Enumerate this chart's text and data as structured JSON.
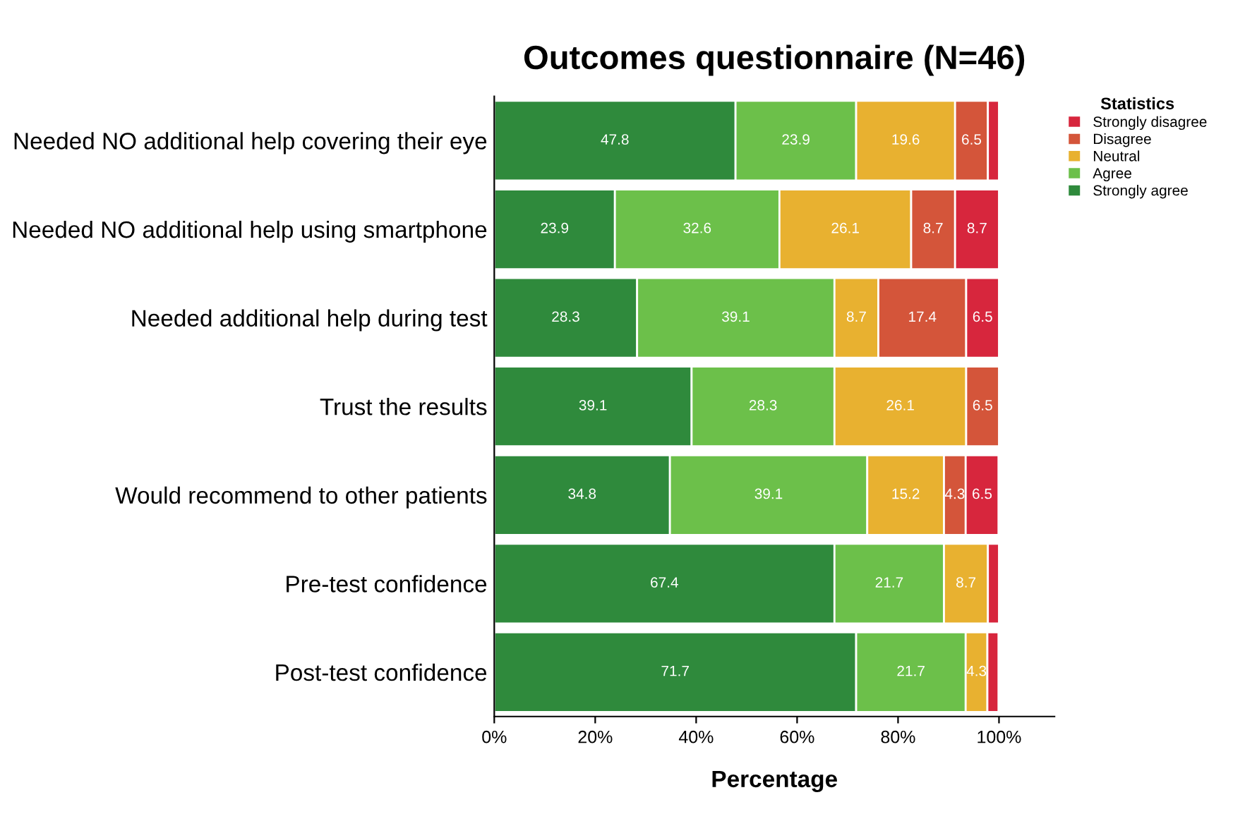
{
  "chart_data": {
    "type": "bar",
    "orientation": "horizontal",
    "stacked": true,
    "title": "Outcomes questionnaire (N=46)",
    "xlabel": "Percentage",
    "legend_title": "Statistics",
    "legend": "top right",
    "categories": [
      "Needed NO additional help covering their eye",
      "Needed NO additional help using smartphone",
      "Needed additional help during test",
      "Trust the results",
      "Would recommend to other patients",
      "Pre-test confidence",
      "Post-test confidence"
    ],
    "xlim": [
      0,
      111
    ],
    "xticks": [
      {
        "value": 0,
        "label": "0%"
      },
      {
        "value": 20,
        "label": "20%"
      },
      {
        "value": 40,
        "label": "40%"
      },
      {
        "value": 60,
        "label": "60%"
      },
      {
        "value": 80,
        "label": "80%"
      },
      {
        "value": 100,
        "label": "100%"
      }
    ],
    "grid": false,
    "series": [
      {
        "name": "Strongly agree",
        "color": "#2f8a3c",
        "values": [
          47.8,
          23.9,
          28.3,
          39.1,
          34.8,
          67.4,
          71.7
        ],
        "value_labels": [
          "47.8",
          "23.9",
          "28.3",
          "39.1",
          "34.8",
          "67.4",
          "71.7"
        ]
      },
      {
        "name": "Agree",
        "color": "#6cc04a",
        "values": [
          23.9,
          32.6,
          39.1,
          28.3,
          39.1,
          21.7,
          21.7
        ],
        "value_labels": [
          "23.9",
          "32.6",
          "39.1",
          "28.3",
          "39.1",
          "21.7",
          "21.7"
        ]
      },
      {
        "name": "Neutral",
        "color": "#e8b130",
        "values": [
          19.6,
          26.1,
          8.7,
          26.1,
          15.2,
          8.7,
          4.3
        ],
        "value_labels": [
          "19.6",
          "26.1",
          "8.7",
          "26.1",
          "15.2",
          "8.7",
          "4.3"
        ]
      },
      {
        "name": "Disagree",
        "color": "#d4553a",
        "values": [
          6.5,
          8.7,
          17.4,
          6.5,
          4.3,
          null,
          null
        ],
        "value_labels": [
          "6.5",
          "8.7",
          "17.4",
          "6.5",
          "4.3",
          null,
          null
        ]
      },
      {
        "name": "Strongly disagree",
        "color": "#d7263d",
        "values": [
          2.2,
          8.7,
          6.5,
          null,
          6.5,
          2.2,
          2.2
        ],
        "value_labels": [
          null,
          "8.7",
          "6.5",
          null,
          "6.5",
          null,
          null
        ]
      }
    ]
  }
}
